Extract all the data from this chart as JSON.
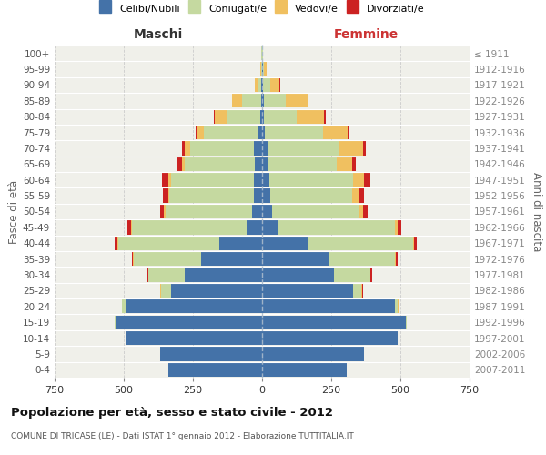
{
  "age_groups": [
    "0-4",
    "5-9",
    "10-14",
    "15-19",
    "20-24",
    "25-29",
    "30-34",
    "35-39",
    "40-44",
    "45-49",
    "50-54",
    "55-59",
    "60-64",
    "65-69",
    "70-74",
    "75-79",
    "80-84",
    "85-89",
    "90-94",
    "95-99",
    "100+"
  ],
  "birth_years": [
    "2007-2011",
    "2002-2006",
    "1997-2001",
    "1992-1996",
    "1987-1991",
    "1982-1986",
    "1977-1981",
    "1972-1976",
    "1967-1971",
    "1962-1966",
    "1957-1961",
    "1952-1956",
    "1947-1951",
    "1942-1946",
    "1937-1941",
    "1932-1936",
    "1927-1931",
    "1922-1926",
    "1917-1921",
    "1912-1916",
    "≤ 1911"
  ],
  "male": {
    "celibi": [
      340,
      370,
      490,
      530,
      490,
      330,
      280,
      220,
      155,
      55,
      35,
      30,
      30,
      25,
      30,
      15,
      5,
      3,
      2,
      0,
      0
    ],
    "coniugati": [
      0,
      0,
      0,
      2,
      15,
      35,
      130,
      245,
      365,
      415,
      315,
      305,
      300,
      255,
      230,
      195,
      120,
      70,
      15,
      3,
      2
    ],
    "vedovi": [
      0,
      0,
      0,
      0,
      2,
      2,
      2,
      2,
      3,
      5,
      5,
      5,
      10,
      10,
      20,
      25,
      45,
      35,
      8,
      2,
      0
    ],
    "divorziati": [
      0,
      0,
      0,
      0,
      0,
      2,
      5,
      5,
      10,
      12,
      12,
      18,
      22,
      15,
      10,
      5,
      5,
      2,
      0,
      0,
      0
    ]
  },
  "female": {
    "nubili": [
      305,
      370,
      490,
      520,
      480,
      330,
      260,
      240,
      165,
      60,
      35,
      30,
      25,
      20,
      20,
      10,
      5,
      5,
      3,
      2,
      0
    ],
    "coniugate": [
      0,
      0,
      0,
      2,
      10,
      30,
      130,
      240,
      380,
      420,
      315,
      295,
      305,
      250,
      255,
      210,
      120,
      80,
      25,
      5,
      2
    ],
    "vedove": [
      0,
      0,
      0,
      0,
      2,
      2,
      3,
      3,
      5,
      10,
      15,
      25,
      40,
      55,
      90,
      90,
      100,
      80,
      35,
      8,
      2
    ],
    "divorziate": [
      0,
      0,
      0,
      0,
      0,
      3,
      5,
      8,
      10,
      12,
      18,
      20,
      22,
      15,
      10,
      5,
      5,
      3,
      2,
      0,
      0
    ]
  },
  "colors": {
    "celibi": "#4472a8",
    "coniugati": "#c5d9a0",
    "vedovi": "#f0c060",
    "divorziati": "#cc2222"
  },
  "xlim": 750,
  "title": "Popolazione per età, sesso e stato civile - 2012",
  "subtitle": "COMUNE DI TRICASE (LE) - Dati ISTAT 1° gennaio 2012 - Elaborazione TUTTITALIA.IT",
  "ylabel": "Fasce di età",
  "ylabel_right": "Anni di nascita",
  "xlabel_maschi": "Maschi",
  "xlabel_femmine": "Femmine",
  "bg_color": "#f0f0ea",
  "legend_labels": [
    "Celibi/Nubili",
    "Coniugati/e",
    "Vedovi/e",
    "Divorziati/e"
  ]
}
